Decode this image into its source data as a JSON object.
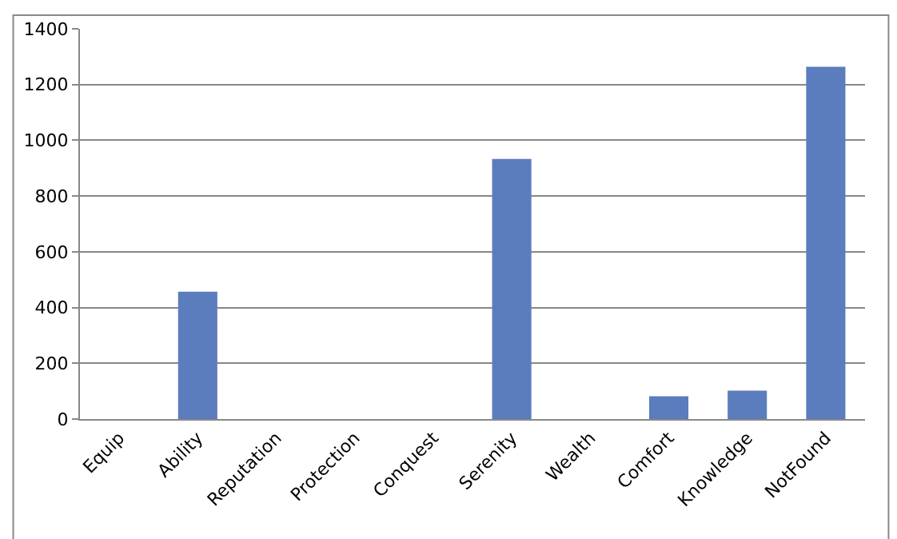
{
  "chart_data": {
    "type": "bar",
    "categories": [
      "Equip",
      "Ability",
      "Reputation",
      "Protection",
      "Conquest",
      "Serenity",
      "Wealth",
      "Comfort",
      "Knowledge",
      "NotFound"
    ],
    "values": [
      0,
      457,
      0,
      0,
      0,
      933,
      0,
      82,
      102,
      1264
    ],
    "color": "#5b7dbd",
    "ylim": [
      0,
      1400
    ],
    "yticks": [
      0,
      200,
      400,
      600,
      800,
      1000,
      1200,
      1400
    ],
    "grid": "y"
  }
}
